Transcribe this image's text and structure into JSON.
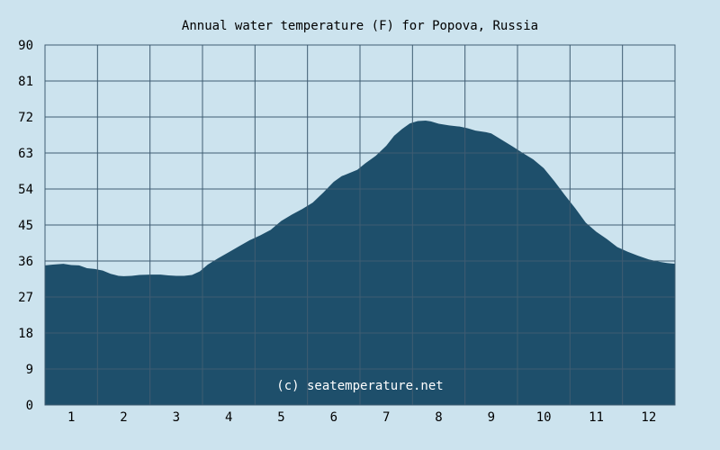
{
  "chart_data": {
    "type": "area",
    "title": "Annual water temperature (F) for Popova, Russia",
    "watermark": "(c) seatemperature.net",
    "xlabel": "",
    "ylabel": "",
    "x_tick_labels": [
      "1",
      "2",
      "3",
      "4",
      "5",
      "6",
      "7",
      "8",
      "9",
      "10",
      "11",
      "12"
    ],
    "y_ticks": [
      0,
      9,
      18,
      27,
      36,
      45,
      54,
      63,
      72,
      81,
      90
    ],
    "ylim": [
      0,
      90
    ],
    "xlim": [
      0.5,
      12.5
    ],
    "grid": true,
    "colors": {
      "background": "#cce3ee",
      "plot_area": "#cce3ee",
      "fill": "#1e4f6b",
      "grid": "#3f5c72",
      "text": "#000000"
    },
    "series": [
      {
        "x": [
          0.5,
          0.65,
          0.85,
          1.0,
          1.15,
          1.3,
          1.45,
          1.6,
          1.75,
          1.9,
          2.0,
          2.15,
          2.3,
          2.5,
          2.7,
          2.85,
          3.0,
          3.15,
          3.3,
          3.45,
          3.6,
          3.8,
          4.0,
          4.2,
          4.4,
          4.6,
          4.8,
          5.0,
          5.2,
          5.4,
          5.6,
          5.8,
          6.0,
          6.15,
          6.3,
          6.45,
          6.6,
          6.8,
          7.0,
          7.15,
          7.3,
          7.45,
          7.6,
          7.75,
          7.85,
          8.0,
          8.2,
          8.4,
          8.55,
          8.7,
          8.9,
          9.0,
          9.2,
          9.4,
          9.6,
          9.8,
          10.0,
          10.2,
          10.4,
          10.6,
          10.8,
          11.0,
          11.2,
          11.4,
          11.6,
          11.8,
          12.0,
          12.2,
          12.35,
          12.5
        ],
        "values": [
          34.9,
          35.1,
          35.3,
          35.0,
          34.9,
          34.2,
          34.0,
          33.6,
          32.8,
          32.3,
          32.2,
          32.3,
          32.5,
          32.6,
          32.6,
          32.4,
          32.3,
          32.3,
          32.5,
          33.4,
          35.1,
          36.7,
          38.2,
          39.7,
          41.2,
          42.4,
          43.8,
          46.0,
          47.6,
          49.0,
          50.6,
          53.1,
          55.8,
          57.2,
          58.0,
          58.8,
          60.4,
          62.3,
          64.8,
          67.3,
          69.0,
          70.4,
          71.0,
          71.1,
          70.9,
          70.3,
          69.9,
          69.6,
          69.2,
          68.6,
          68.2,
          67.9,
          66.3,
          64.7,
          63.0,
          61.4,
          59.2,
          56.0,
          52.5,
          49.2,
          45.6,
          43.3,
          41.5,
          39.5,
          38.3,
          37.3,
          36.4,
          35.8,
          35.5,
          35.3
        ]
      }
    ]
  }
}
